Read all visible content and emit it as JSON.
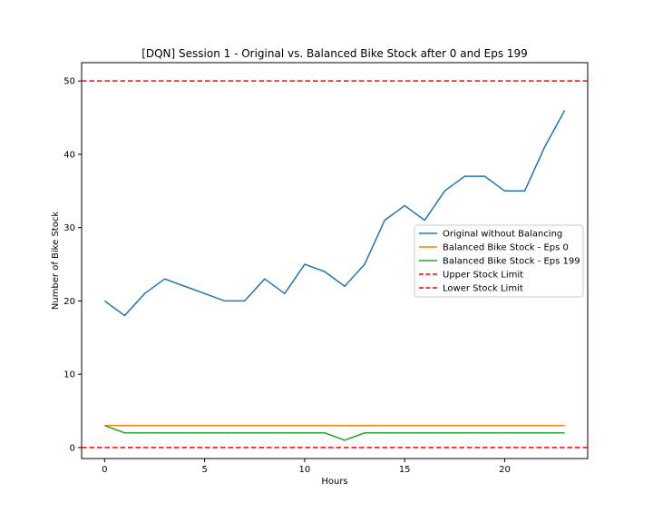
{
  "chart_data": {
    "type": "line",
    "title": "[DQN] Session 1 - Original vs. Balanced Bike Stock after 0 and Eps 199",
    "xlabel": "Hours",
    "ylabel": "Number of Bike Stock",
    "xlim": [
      -1.15,
      24.15
    ],
    "ylim": [
      -1.5,
      52.5
    ],
    "xticks": [
      0,
      5,
      10,
      15,
      20
    ],
    "yticks": [
      0,
      10,
      20,
      30,
      40,
      50
    ],
    "grid": false,
    "legend_position": "center-right",
    "x": [
      0,
      1,
      2,
      3,
      4,
      5,
      6,
      7,
      8,
      9,
      10,
      11,
      12,
      13,
      14,
      15,
      16,
      17,
      18,
      19,
      20,
      21,
      22,
      23
    ],
    "series": [
      {
        "name": "Original without Balancing",
        "color": "#1f77b4",
        "style": "solid",
        "values": [
          20,
          18,
          21,
          23,
          22,
          21,
          20,
          20,
          23,
          21,
          25,
          24,
          22,
          25,
          31,
          33,
          31,
          35,
          37,
          37,
          35,
          35,
          41,
          46
        ]
      },
      {
        "name": "Balanced Bike Stock - Eps 0",
        "color": "#ff7f0e",
        "style": "solid",
        "values": [
          3,
          3,
          3,
          3,
          3,
          3,
          3,
          3,
          3,
          3,
          3,
          3,
          3,
          3,
          3,
          3,
          3,
          3,
          3,
          3,
          3,
          3,
          3,
          3
        ]
      },
      {
        "name": "Balanced Bike Stock - Eps 199",
        "color": "#2ca02c",
        "style": "solid",
        "values": [
          3,
          2,
          2,
          2,
          2,
          2,
          2,
          2,
          2,
          2,
          2,
          2,
          1,
          2,
          2,
          2,
          2,
          2,
          2,
          2,
          2,
          2,
          2,
          2
        ]
      }
    ],
    "hlines": [
      {
        "name": "Upper Stock Limit",
        "y": 50,
        "color": "#ff0000",
        "style": "dashed"
      },
      {
        "name": "Lower Stock Limit",
        "y": 0,
        "color": "#ff0000",
        "style": "dashed"
      }
    ]
  }
}
